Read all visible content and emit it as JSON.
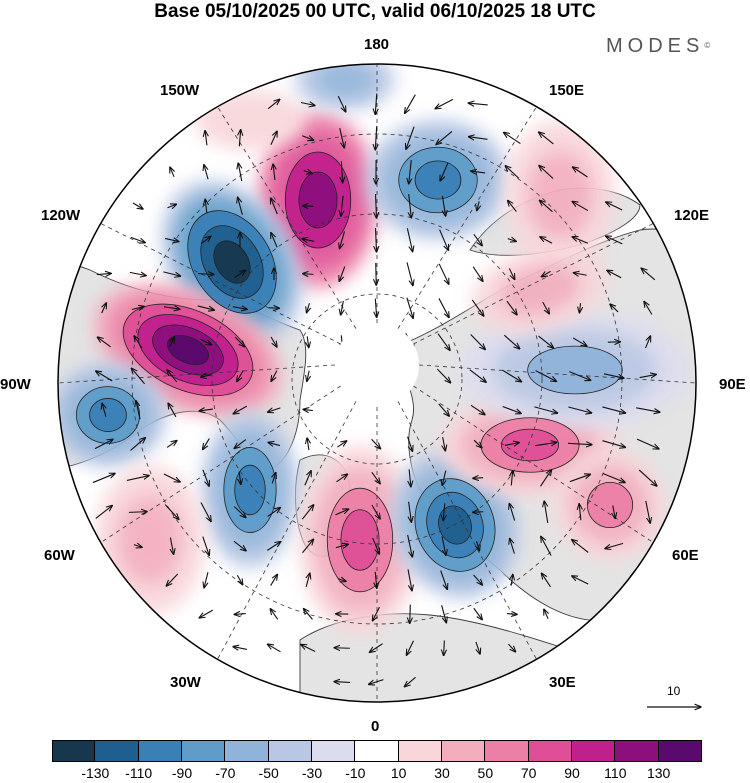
{
  "title": "Base 05/10/2025 00 UTC, valid 06/10/2025 18 UTC",
  "brand": {
    "name": "MODES",
    "mark": "©"
  },
  "longitude_labels": {
    "n180": "180",
    "n150e": "150E",
    "n120e": "120E",
    "n90e": "90E",
    "n60e": "60E",
    "n30e": "30E",
    "n0": "0",
    "n30w": "30W",
    "n60w": "60W",
    "n90w": "90W",
    "n120w": "120W",
    "n150w": "150W"
  },
  "colorbar": {
    "ticks": [
      "-130",
      "-110",
      "-90",
      "-70",
      "-50",
      "-30",
      "-10",
      "10",
      "30",
      "50",
      "70",
      "90",
      "110",
      "130"
    ],
    "colors": [
      "#17374f",
      "#1f5f8f",
      "#3a7fb6",
      "#5f9cc9",
      "#8fb3d9",
      "#b9c7e4",
      "#dcdcef",
      "#ffffff",
      "#f8d6d9",
      "#f3adbd",
      "#ec7fa6",
      "#de4f97",
      "#c0208c",
      "#8c0f7d",
      "#5a0a6e"
    ]
  },
  "reference_vector": {
    "label": "10"
  },
  "map_colors": {
    "land": "#e4e4e4",
    "coast": "#3a3a3a",
    "grid": "#333333",
    "frame": "#000000",
    "arrow": "#111111"
  }
}
